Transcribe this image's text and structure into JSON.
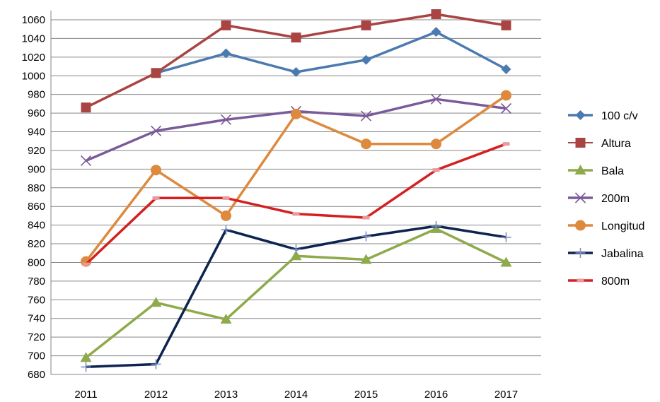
{
  "chart_data": {
    "type": "line",
    "title": "",
    "xlabel": "",
    "ylabel": "",
    "categories": [
      "2011",
      "2012",
      "2013",
      "2014",
      "2015",
      "2016",
      "2017"
    ],
    "ylim": [
      680,
      1060
    ],
    "ystep": 20,
    "grid": "horizontal",
    "legend_position": "right",
    "series": [
      {
        "name": "100 c/v",
        "color": "#4a7ab0",
        "marker": "diamond",
        "values": [
          null,
          1003,
          1024,
          1004,
          1017,
          1047,
          1007
        ]
      },
      {
        "name": "Altura",
        "color": "#a94442",
        "marker": "square",
        "values": [
          966,
          1003,
          1054,
          1041,
          1054,
          1066,
          1054
        ]
      },
      {
        "name": "Bala",
        "color": "#8eaa4b",
        "marker": "triangle",
        "values": [
          698,
          757,
          739,
          807,
          803,
          836,
          800
        ]
      },
      {
        "name": "200m",
        "color": "#7a5a9a",
        "marker": "x",
        "values": [
          909,
          941,
          953,
          962,
          957,
          975,
          965
        ]
      },
      {
        "name": "Longitud",
        "color": "#dd8a3e",
        "marker": "circle",
        "values": [
          801,
          899,
          850,
          959,
          927,
          927,
          979
        ]
      },
      {
        "name": "Jabalina",
        "color": "#0d2350",
        "marker": "plus",
        "values": [
          688,
          691,
          835,
          814,
          828,
          839,
          827
        ]
      },
      {
        "name": "800m",
        "color": "#d42020",
        "marker": "dash",
        "values": [
          798,
          869,
          869,
          852,
          848,
          899,
          927
        ]
      }
    ]
  }
}
